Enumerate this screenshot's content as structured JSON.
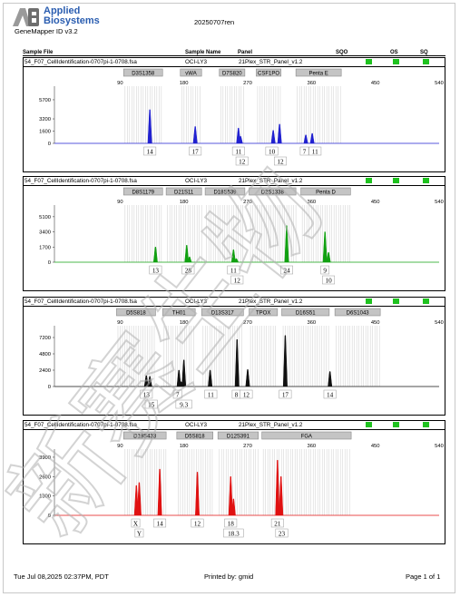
{
  "header": {
    "brand_line1": "Applied",
    "brand_line2": "Biosystems",
    "software": "GeneMapper ID v3.2",
    "run_name": "20250707ren"
  },
  "columns": {
    "sample_file": "Sample File",
    "sample_name": "Sample Name",
    "panel": "Panel",
    "sqo": "SQO",
    "os": "OS",
    "sq": "SQ"
  },
  "status_color": "#1fc21f",
  "watermark": "新赛生物",
  "panels": [
    {
      "file": "54_F07_CellIdentification-0707pi-1-0708.fsa",
      "sample": "OCI-LY3",
      "panel": "21Plex_STR_Panel_v1.2",
      "color": "#2020d0",
      "ymax": 7000,
      "yticks": [
        0,
        1600,
        3200,
        5700
      ],
      "loci": [
        {
          "name": "D3S1358",
          "x0": 95,
          "x1": 150
        },
        {
          "name": "vWA",
          "x0": 175,
          "x1": 205
        },
        {
          "name": "D7S820",
          "x0": 230,
          "x1": 266
        },
        {
          "name": "CSF1PO",
          "x0": 282,
          "x1": 317
        },
        {
          "name": "Penta E",
          "x0": 338,
          "x1": 402
        }
      ],
      "peaks": [
        {
          "x": 132,
          "h": 4400
        },
        {
          "x": 196,
          "h": 2200
        },
        {
          "x": 257,
          "h": 2000
        },
        {
          "x": 260,
          "h": 900
        },
        {
          "x": 306,
          "h": 1700
        },
        {
          "x": 315,
          "h": 2500
        },
        {
          "x": 352,
          "h": 1100
        },
        {
          "x": 361,
          "h": 1300
        }
      ],
      "labels": [
        {
          "x": 132,
          "row": 1,
          "text": "14"
        },
        {
          "x": 196,
          "row": 1,
          "text": "17"
        },
        {
          "x": 257,
          "row": 1,
          "text": "11"
        },
        {
          "x": 262,
          "row": 2,
          "text": "12"
        },
        {
          "x": 304,
          "row": 1,
          "text": "10"
        },
        {
          "x": 316,
          "row": 2,
          "text": "12"
        },
        {
          "x": 350,
          "row": 1,
          "text": "7"
        },
        {
          "x": 365,
          "row": 1,
          "text": "11"
        }
      ]
    },
    {
      "file": "54_F07_CellIdentification-0707pi-1-0708.fsa",
      "sample": "OCI-LY3",
      "panel": "21Plex_STR_Panel_v1.2",
      "color": "#10a010",
      "ymax": 6000,
      "yticks": [
        0,
        1700,
        3400,
        5100
      ],
      "loci": [
        {
          "name": "D8S1179",
          "x0": 95,
          "x1": 150
        },
        {
          "name": "D21S11",
          "x0": 155,
          "x1": 205
        },
        {
          "name": "D18S539",
          "x0": 210,
          "x1": 266
        },
        {
          "name": "D2S1338",
          "x0": 272,
          "x1": 338
        },
        {
          "name": "Penta D",
          "x0": 345,
          "x1": 415
        }
      ],
      "peaks": [
        {
          "x": 140,
          "h": 1700
        },
        {
          "x": 184,
          "h": 1900
        },
        {
          "x": 188,
          "h": 600
        },
        {
          "x": 250,
          "h": 1400
        },
        {
          "x": 254,
          "h": 400
        },
        {
          "x": 325,
          "h": 4100
        },
        {
          "x": 379,
          "h": 3400
        },
        {
          "x": 384,
          "h": 1100
        }
      ],
      "labels": [
        {
          "x": 140,
          "row": 1,
          "text": "13"
        },
        {
          "x": 186,
          "row": 1,
          "text": "28"
        },
        {
          "x": 250,
          "row": 1,
          "text": "11"
        },
        {
          "x": 255,
          "row": 2,
          "text": "12"
        },
        {
          "x": 325,
          "row": 1,
          "text": "24"
        },
        {
          "x": 379,
          "row": 1,
          "text": "9"
        },
        {
          "x": 384,
          "row": 2,
          "text": "10"
        }
      ]
    },
    {
      "file": "54_F07_CellIdentification-0707pi-1-0708.fsa",
      "sample": "OCI-LY3",
      "panel": "21Plex_STR_Panel_v1.2",
      "color": "#101010",
      "ymax": 8400,
      "yticks": [
        0,
        2400,
        4800,
        7200
      ],
      "loci": [
        {
          "name": "D5S818",
          "x0": 85,
          "x1": 140
        },
        {
          "name": "TH01",
          "x0": 150,
          "x1": 196
        },
        {
          "name": "D13S317",
          "x0": 205,
          "x1": 264
        },
        {
          "name": "TPOX",
          "x0": 272,
          "x1": 312
        },
        {
          "name": "D16S51",
          "x0": 318,
          "x1": 385
        },
        {
          "name": "D6S1043",
          "x0": 393,
          "x1": 457
        }
      ],
      "peaks": [
        {
          "x": 127,
          "h": 1600
        },
        {
          "x": 132,
          "h": 1500
        },
        {
          "x": 173,
          "h": 2400
        },
        {
          "x": 180,
          "h": 3900
        },
        {
          "x": 176,
          "h": 700
        },
        {
          "x": 217,
          "h": 2400
        },
        {
          "x": 255,
          "h": 6900
        },
        {
          "x": 270,
          "h": 2500
        },
        {
          "x": 323,
          "h": 7500
        },
        {
          "x": 386,
          "h": 2200
        }
      ],
      "labels": [
        {
          "x": 127,
          "row": 1,
          "text": "13"
        },
        {
          "x": 134,
          "row": 2,
          "text": "15"
        },
        {
          "x": 171,
          "row": 1,
          "text": "7"
        },
        {
          "x": 180,
          "row": 2,
          "text": "9.3"
        },
        {
          "x": 218,
          "row": 1,
          "text": "11"
        },
        {
          "x": 254,
          "row": 1,
          "text": "8"
        },
        {
          "x": 268,
          "row": 1,
          "text": "12"
        },
        {
          "x": 323,
          "row": 1,
          "text": "17"
        },
        {
          "x": 386,
          "row": 1,
          "text": "14"
        }
      ]
    },
    {
      "file": "54_F07_CellIdentification-0707pi-1-0708.fsa",
      "sample": "OCI-LY3",
      "panel": "21Plex_STR_Panel_v1.2",
      "color": "#e01010",
      "ymax": 4200,
      "yticks": [
        0,
        1300,
        2600,
        3900
      ],
      "loci": [
        {
          "name": "D19S433",
          "x0": 95,
          "x1": 155
        },
        {
          "name": "D5S818",
          "x0": 170,
          "x1": 221
        },
        {
          "name": "D12S391",
          "x0": 228,
          "x1": 285
        },
        {
          "name": "FGA",
          "x0": 290,
          "x1": 416
        }
      ],
      "peaks": [
        {
          "x": 113,
          "h": 2000
        },
        {
          "x": 117,
          "h": 2200
        },
        {
          "x": 146,
          "h": 3100
        },
        {
          "x": 199,
          "h": 2900
        },
        {
          "x": 246,
          "h": 2600
        },
        {
          "x": 250,
          "h": 1100
        },
        {
          "x": 312,
          "h": 3700
        },
        {
          "x": 317,
          "h": 2600
        }
      ],
      "labels": [
        {
          "x": 112,
          "row": 1,
          "text": "X"
        },
        {
          "x": 117,
          "row": 2,
          "text": "Y"
        },
        {
          "x": 146,
          "row": 1,
          "text": "14"
        },
        {
          "x": 199,
          "row": 1,
          "text": "12"
        },
        {
          "x": 246,
          "row": 1,
          "text": "18"
        },
        {
          "x": 250,
          "row": 2,
          "text": "18.3"
        },
        {
          "x": 312,
          "row": 1,
          "text": "21"
        },
        {
          "x": 318,
          "row": 2,
          "text": "23"
        }
      ]
    }
  ],
  "xticks": [
    90,
    180,
    270,
    360,
    450,
    540
  ],
  "footer": {
    "datetime": "Tue Jul 08,2025 02:37PM, PDT",
    "printed_by": "Printed by: gmid",
    "page": "Page 1 of 1"
  }
}
